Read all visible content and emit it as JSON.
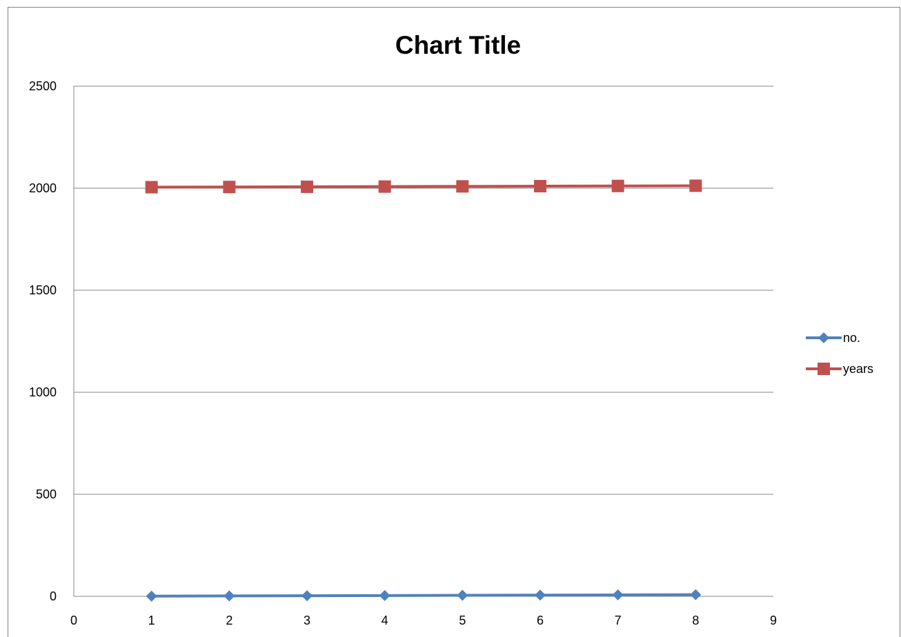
{
  "chart_data": {
    "type": "scatter",
    "title": "Chart Title",
    "xlabel": "",
    "ylabel": "",
    "xlim": [
      0,
      9
    ],
    "ylim": [
      0,
      2500
    ],
    "x_ticks": [
      0,
      1,
      2,
      3,
      4,
      5,
      6,
      7,
      8,
      9
    ],
    "y_ticks": [
      0,
      500,
      1000,
      1500,
      2000,
      2500
    ],
    "grid": "horizontal",
    "legend": "right",
    "series": [
      {
        "name": "no.",
        "color": "#4F81BD",
        "marker": "diamond",
        "x": [
          1,
          2,
          3,
          4,
          5,
          6,
          7,
          8
        ],
        "y": [
          1,
          2,
          3,
          4,
          5,
          6,
          7,
          8
        ]
      },
      {
        "name": "years",
        "color": "#C0504D",
        "marker": "square",
        "x": [
          1,
          2,
          3,
          4,
          5,
          6,
          7,
          8
        ],
        "y": [
          2005,
          2006,
          2007,
          2008,
          2009,
          2010,
          2011,
          2012
        ]
      }
    ]
  }
}
